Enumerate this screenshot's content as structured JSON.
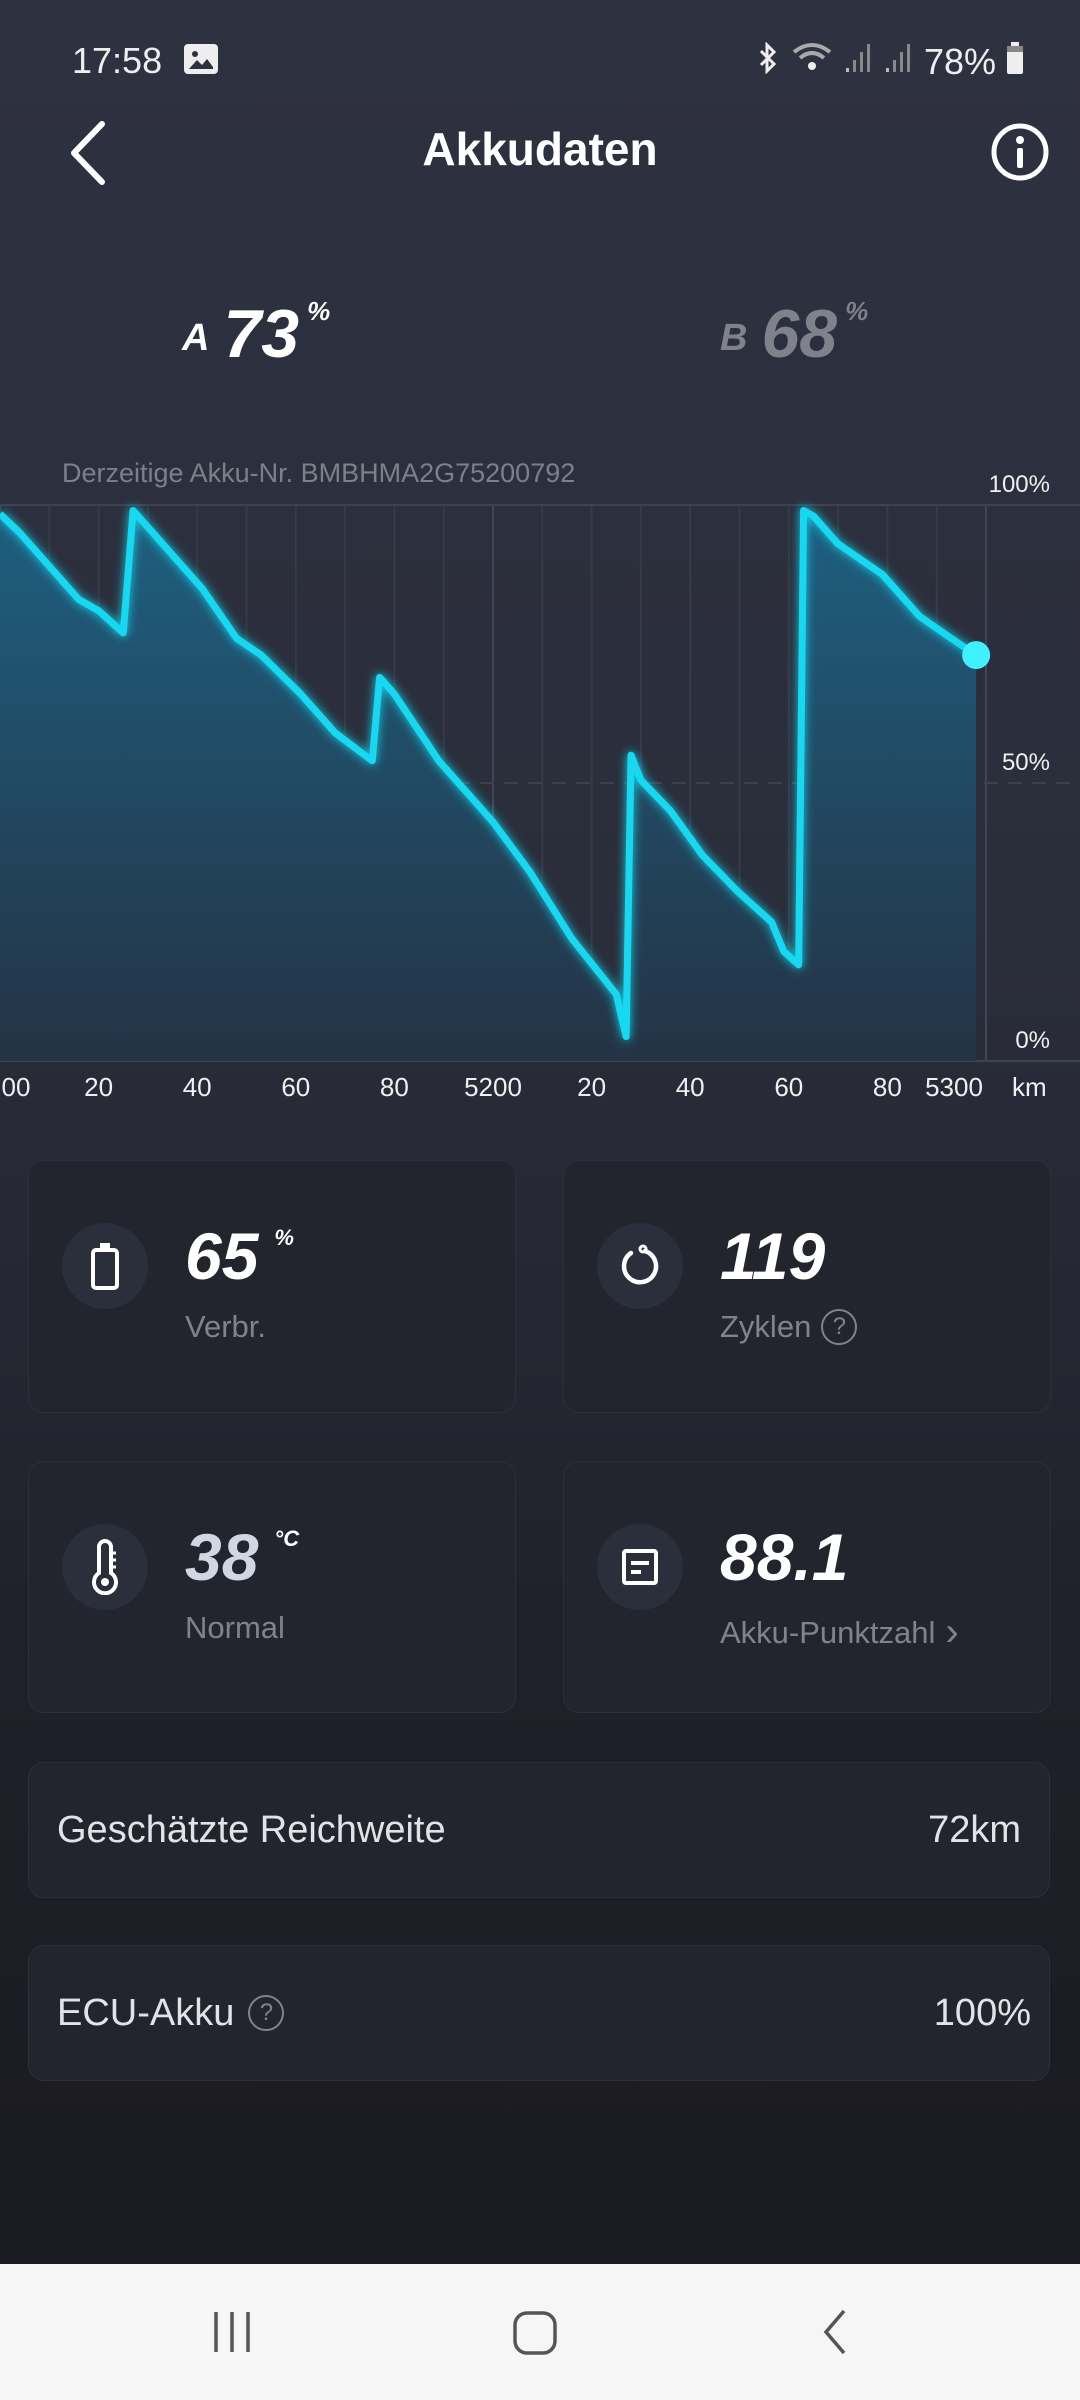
{
  "status_bar": {
    "time": "17:58",
    "battery": "78%",
    "icons": [
      "gallery-icon",
      "bluetooth-icon",
      "wifi-icon",
      "signal-icon",
      "signal-icon",
      "battery-icon"
    ]
  },
  "header": {
    "title": "Akkudaten",
    "back_icon": "chevron-left-icon",
    "info_icon": "info-icon"
  },
  "batteries": [
    {
      "label": "A",
      "value": "73",
      "unit": "%",
      "color": "#ffffff"
    },
    {
      "label": "B",
      "value": "68",
      "unit": "%",
      "color": "#80828b"
    }
  ],
  "akku_nr": "Derzeitige Akku-Nr. BMBHMA2G75200792",
  "chart_data": {
    "type": "area",
    "xlabel": "km",
    "xlim": [
      5100,
      5300
    ],
    "ylim": [
      0,
      100
    ],
    "x_tick_values": [
      5100,
      5120,
      5140,
      5160,
      5180,
      5200,
      5220,
      5240,
      5260,
      5280,
      5300
    ],
    "x_tick_labels": [
      "00",
      "20",
      "40",
      "60",
      "80",
      "5200",
      "20",
      "40",
      "60",
      "80",
      "5300"
    ],
    "y_tick_values": [
      100,
      50,
      0
    ],
    "y_tick_labels": [
      "100%",
      "50%",
      "0%"
    ],
    "grid": true,
    "line_color": "#19d8f0",
    "series": [
      {
        "x": [
          5100,
          5104,
          5116,
          5120,
          5125,
          5127,
          5132,
          5141,
          5148,
          5153,
          5161,
          5168,
          5175.5,
          5177,
          5180,
          5189,
          5196,
          5200,
          5207.5,
          5216,
          5225,
          5227,
          5228,
          5230,
          5236,
          5242.5,
          5249.5,
          5256.5,
          5259,
          5262,
          5263,
          5265,
          5270,
          5279,
          5286.5,
          5293,
          5298
        ],
        "y": [
          98.4,
          95,
          83,
          81,
          77,
          99,
          94,
          85,
          76,
          73,
          66,
          59,
          54,
          69,
          66,
          54,
          47,
          43,
          34,
          22,
          12,
          4.4,
          55,
          50.5,
          45,
          37,
          30.6,
          25,
          19.7,
          17.3,
          99,
          98,
          93,
          87.5,
          80,
          76,
          73
        ]
      }
    ]
  },
  "cards": [
    {
      "icon": "battery-icon",
      "value": "65",
      "unit": "%",
      "label": "Verbr."
    },
    {
      "icon": "cycle-icon",
      "value": "119",
      "unit": "",
      "label": "Zyklen",
      "help": "?"
    },
    {
      "icon": "thermometer-icon",
      "value": "38",
      "unit": "°C",
      "label": "Normal"
    },
    {
      "icon": "score-icon",
      "value": "88.1",
      "unit": "",
      "label": "Akku-Punktzahl",
      "arrow": "›"
    }
  ],
  "rows": [
    {
      "label": "Geschätzte Reichweite",
      "value": "72km"
    },
    {
      "label": "ECU-Akku",
      "value": "100%",
      "help": "?"
    }
  ]
}
